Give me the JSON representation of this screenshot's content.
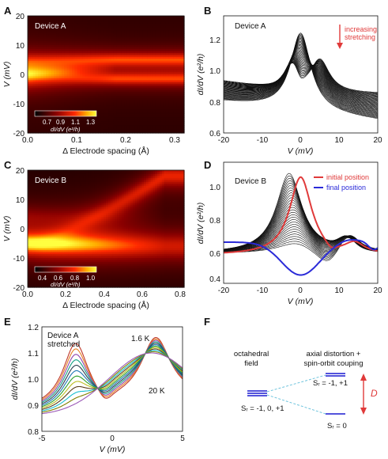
{
  "panel_letters": [
    "A",
    "B",
    "C",
    "D",
    "E",
    "F"
  ],
  "colors": {
    "red": "#e03a3a",
    "blue": "#2a2ad8",
    "dashed": "#6fc4dd",
    "level": "#1a1ad0",
    "black": "#111111"
  },
  "panel_f": {
    "left_title": [
      "octahedral",
      "field"
    ],
    "right_title": [
      "axial distortion +",
      "spin-orbit couping"
    ],
    "left_state": "Sᵣ = -1, 0, +1",
    "top_state": "Sᵣ = -1, +1",
    "bottom_state": "Sᵣ = 0",
    "gap_label": "D"
  },
  "chart_data": [
    {
      "id": "A",
      "type": "heatmap",
      "inset_label": "Device A",
      "xlabel": "Δ Electrode spacing (Å)",
      "ylabel": "V (mV)",
      "xlim": [
        0,
        0.32
      ],
      "ylim": [
        -20,
        20
      ],
      "xticks": [
        "0.0",
        "0.1",
        "0.2",
        "0.3"
      ],
      "yticks": [
        "-20",
        "-10",
        "0",
        "10",
        "20"
      ],
      "colorbar": {
        "label": "dI/dV (e²/h)",
        "ticks": [
          "0.7",
          "0.9",
          "1.1",
          "1.3"
        ],
        "range": [
          0.6,
          1.35
        ]
      },
      "description_values": {
        "zero_bias_peak_at_x0": 1.3,
        "split_peak_position_mV": [
          -1.5,
          5
        ]
      }
    },
    {
      "id": "B",
      "type": "line",
      "inset_label": "Device A",
      "annotation": [
        "increasing",
        "stretching"
      ],
      "xlabel": "V (mV)",
      "ylabel": "dI/dV (e²/h)",
      "xlim": [
        -20,
        20
      ],
      "ylim": [
        0.6,
        1.35
      ],
      "xticks": [
        "-20",
        "-10",
        "0",
        "10",
        "20"
      ],
      "yticks": [
        "0.6",
        "0.8",
        "1.0",
        "1.2"
      ],
      "series_count": 40,
      "first_curve": {
        "peak_V": 0,
        "peak": 1.3,
        "baseline_left": 0.8,
        "baseline_right": 0.68
      },
      "last_curve": {
        "dip_V": 0,
        "dip": 0.95,
        "side_peaks_V": [
          -2,
          5
        ],
        "side_peak": 1.03
      }
    },
    {
      "id": "C",
      "type": "heatmap",
      "inset_label": "Device B",
      "xlabel": "Δ Electrode spacing (Å)",
      "ylabel": "V (mV)",
      "xlim": [
        0,
        0.82
      ],
      "ylim": [
        -20,
        20
      ],
      "xticks": [
        "0.0",
        "0.2",
        "0.4",
        "0.6",
        "0.8"
      ],
      "yticks": [
        "-20",
        "-10",
        "0",
        "10",
        "20"
      ],
      "colorbar": {
        "label": "dI/dV (e²/h)",
        "ticks": [
          "0.4",
          "0.6",
          "0.8",
          "1.0"
        ],
        "range": [
          0.35,
          1.05
        ]
      },
      "description_values": {
        "peak_at_x0_mV": -5,
        "upper_branch_end_mV": 18,
        "lower_branch_end_mV": -6
      }
    },
    {
      "id": "D",
      "type": "line",
      "inset_label": "Device B",
      "xlabel": "V (mV)",
      "ylabel": "dI/dV (e²/h)",
      "xlim": [
        -20,
        20
      ],
      "ylim": [
        0.35,
        1.08
      ],
      "xticks": [
        "-20",
        "-10",
        "0",
        "10",
        "20"
      ],
      "yticks": [
        "0.4",
        "0.6",
        "0.8",
        "1.0"
      ],
      "legend": [
        "initial position",
        "final position"
      ],
      "series_count": 30,
      "initial_position": {
        "peak_V": 0,
        "peak": 0.99,
        "baseline": 0.52
      },
      "final_position": {
        "dip_V": 0,
        "dip": 0.4,
        "side_peak_V": [
          -15,
          12
        ],
        "side_peak": 0.62
      }
    },
    {
      "id": "E",
      "type": "line",
      "inset_label": [
        "Device A",
        "stretched"
      ],
      "annotations": [
        "1.6 K",
        "20 K"
      ],
      "xlabel": "V (mV)",
      "ylabel": "dI/dV (e²/h)",
      "xlim": [
        -5,
        5
      ],
      "ylim": [
        0.8,
        1.2
      ],
      "xticks": [
        "-5",
        "0",
        "5"
      ],
      "yticks": [
        "0.8",
        "0.9",
        "1.0",
        "1.1",
        "1.2"
      ],
      "series_colors": [
        "#c0392b",
        "#e67e22",
        "#8e44ad",
        "#16a085",
        "#2c3e50",
        "#1f77b4",
        "#2ca02c",
        "#bcbd22",
        "#5a3e1b",
        "#17becf",
        "#7f7f00",
        "#9b59b6"
      ],
      "coldest_curve": {
        "side_peaks_V": [
          -2.6,
          3.1
        ],
        "peak": 1.14,
        "dip_V": -0.5,
        "dip": 0.93
      },
      "warmest_curve": {
        "max_V": 2.8,
        "max": 1.1,
        "min": 0.86
      }
    }
  ]
}
